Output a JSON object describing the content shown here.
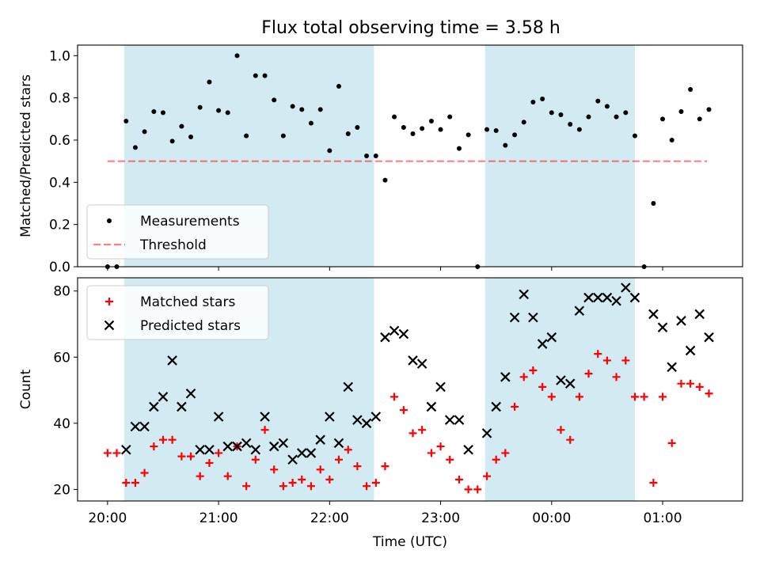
{
  "title": "Flux total observing time = 3.58 h",
  "colors": {
    "band": "#add8e6",
    "threshold": "#ff0000",
    "matched": "#ff0000",
    "predicted": "#000000",
    "measurement": "#000000"
  },
  "chart_data": [
    {
      "type": "scatter",
      "ylabel": "Matched/Predicted stars",
      "xlim": [
        -0.27,
        5.72
      ],
      "ylim": [
        0,
        1.05
      ],
      "yticks": [
        0.0,
        0.2,
        0.4,
        0.6,
        0.8,
        1.0
      ],
      "ytick_labels": [
        "0.0",
        "0.2",
        "0.4",
        "0.6",
        "0.8",
        "1.0"
      ],
      "grid": false,
      "legend": {
        "placement": "lower-left",
        "entries": [
          "Measurements",
          "Threshold"
        ]
      },
      "bands": [
        [
          0.15,
          2.4
        ],
        [
          3.4,
          4.75
        ]
      ],
      "threshold": {
        "name": "Threshold",
        "value": 0.5,
        "x_range": [
          0.0,
          5.4
        ]
      },
      "series": [
        {
          "name": "Measurements",
          "marker": "dot",
          "x": [
            0.0,
            0.083,
            0.167,
            0.25,
            0.333,
            0.417,
            0.5,
            0.583,
            0.667,
            0.75,
            0.833,
            0.917,
            1.0,
            1.083,
            1.167,
            1.25,
            1.333,
            1.417,
            1.5,
            1.583,
            1.667,
            1.75,
            1.833,
            1.917,
            2.0,
            2.083,
            2.167,
            2.25,
            2.333,
            2.417,
            2.5,
            2.583,
            2.667,
            2.75,
            2.833,
            2.917,
            3.0,
            3.083,
            3.167,
            3.25,
            3.333,
            3.417,
            3.5,
            3.583,
            3.667,
            3.75,
            3.833,
            3.917,
            4.0,
            4.083,
            4.167,
            4.25,
            4.333,
            4.417,
            4.5,
            4.583,
            4.667,
            4.75,
            4.833,
            4.917,
            5.0,
            5.083,
            5.167,
            5.25,
            5.333,
            5.417
          ],
          "y": [
            0.0,
            0.0,
            0.69,
            0.565,
            0.64,
            0.735,
            0.73,
            0.595,
            0.665,
            0.615,
            0.755,
            0.875,
            0.74,
            0.73,
            1.0,
            0.62,
            0.905,
            0.905,
            0.79,
            0.62,
            0.76,
            0.745,
            0.68,
            0.745,
            0.55,
            0.855,
            0.63,
            0.66,
            0.525,
            0.525,
            0.41,
            0.71,
            0.66,
            0.63,
            0.655,
            0.69,
            0.65,
            0.71,
            0.56,
            0.625,
            0.0,
            0.65,
            0.645,
            0.575,
            0.625,
            0.685,
            0.78,
            0.795,
            0.73,
            0.72,
            0.675,
            0.65,
            0.71,
            0.785,
            0.76,
            0.71,
            0.73,
            0.62,
            0.0,
            0.3,
            0.7,
            0.6,
            0.735,
            0.84,
            0.7,
            0.745
          ]
        }
      ]
    },
    {
      "type": "scatter",
      "ylabel": "Count",
      "xlabel": "Time (UTC)",
      "xlim": [
        -0.27,
        5.72
      ],
      "ylim": [
        16.5,
        84
      ],
      "yticks": [
        20,
        40,
        60,
        80
      ],
      "ytick_labels": [
        "20",
        "40",
        "60",
        "80"
      ],
      "xticks": [
        0,
        1,
        2,
        3,
        4,
        5
      ],
      "xtick_labels": [
        "20:00",
        "21:00",
        "22:00",
        "23:00",
        "00:00",
        "01:00"
      ],
      "grid": false,
      "legend": {
        "placement": "upper-left",
        "entries": [
          "Matched stars",
          "Predicted stars"
        ]
      },
      "bands": [
        [
          0.15,
          2.4
        ],
        [
          3.4,
          4.75
        ]
      ],
      "series": [
        {
          "name": "Matched stars",
          "marker": "plus",
          "x": [
            0.0,
            0.083,
            0.167,
            0.25,
            0.333,
            0.417,
            0.5,
            0.583,
            0.667,
            0.75,
            0.833,
            0.917,
            1.0,
            1.083,
            1.167,
            1.25,
            1.333,
            1.417,
            1.5,
            1.583,
            1.667,
            1.75,
            1.833,
            1.917,
            2.0,
            2.083,
            2.167,
            2.25,
            2.333,
            2.417,
            2.5,
            2.583,
            2.667,
            2.75,
            2.833,
            2.917,
            3.0,
            3.083,
            3.167,
            3.25,
            3.333,
            3.417,
            3.5,
            3.583,
            3.667,
            3.75,
            3.833,
            3.917,
            4.0,
            4.083,
            4.167,
            4.25,
            4.333,
            4.417,
            4.5,
            4.583,
            4.667,
            4.75,
            4.833,
            4.917,
            5.0,
            5.083,
            5.167,
            5.25,
            5.333,
            5.417
          ],
          "y": [
            31,
            31,
            22,
            22,
            25,
            33,
            35,
            35,
            30,
            30,
            24,
            28,
            31,
            24,
            33,
            21,
            29,
            38,
            26,
            21,
            22,
            23,
            21,
            26,
            23,
            29,
            32,
            27,
            21,
            22,
            27,
            48,
            44,
            37,
            38,
            31,
            33,
            29,
            23,
            20,
            20,
            24,
            29,
            31,
            45,
            54,
            56,
            51,
            48,
            38,
            35,
            48,
            55,
            61,
            59,
            54,
            59,
            48,
            48,
            22,
            48,
            34,
            52,
            52,
            51,
            49
          ]
        },
        {
          "name": "Predicted stars",
          "marker": "x",
          "x": [
            0.167,
            0.25,
            0.333,
            0.417,
            0.5,
            0.583,
            0.667,
            0.75,
            0.833,
            0.917,
            1.0,
            1.083,
            1.167,
            1.25,
            1.333,
            1.417,
            1.5,
            1.583,
            1.667,
            1.75,
            1.833,
            1.917,
            2.0,
            2.083,
            2.167,
            2.25,
            2.333,
            2.417,
            2.5,
            2.583,
            2.667,
            2.75,
            2.833,
            2.917,
            3.0,
            3.083,
            3.167,
            3.25,
            3.417,
            3.5,
            3.583,
            3.667,
            3.75,
            3.833,
            3.917,
            4.0,
            4.083,
            4.167,
            4.25,
            4.333,
            4.417,
            4.5,
            4.583,
            4.667,
            4.75,
            4.917,
            5.0,
            5.083,
            5.167,
            5.25,
            5.333,
            5.417
          ],
          "y": [
            32,
            39,
            39,
            45,
            48,
            59,
            45,
            49,
            32,
            32,
            42,
            33,
            33,
            34,
            32,
            42,
            33,
            34,
            29,
            31,
            31,
            35,
            42,
            34,
            51,
            41,
            40,
            42,
            66,
            68,
            67,
            59,
            58,
            45,
            51,
            41,
            41,
            32,
            37,
            45,
            54,
            72,
            79,
            72,
            64,
            66,
            53,
            52,
            74,
            78,
            78,
            78,
            77,
            81,
            78,
            73,
            69,
            57,
            71,
            62,
            73,
            66
          ]
        }
      ]
    }
  ]
}
